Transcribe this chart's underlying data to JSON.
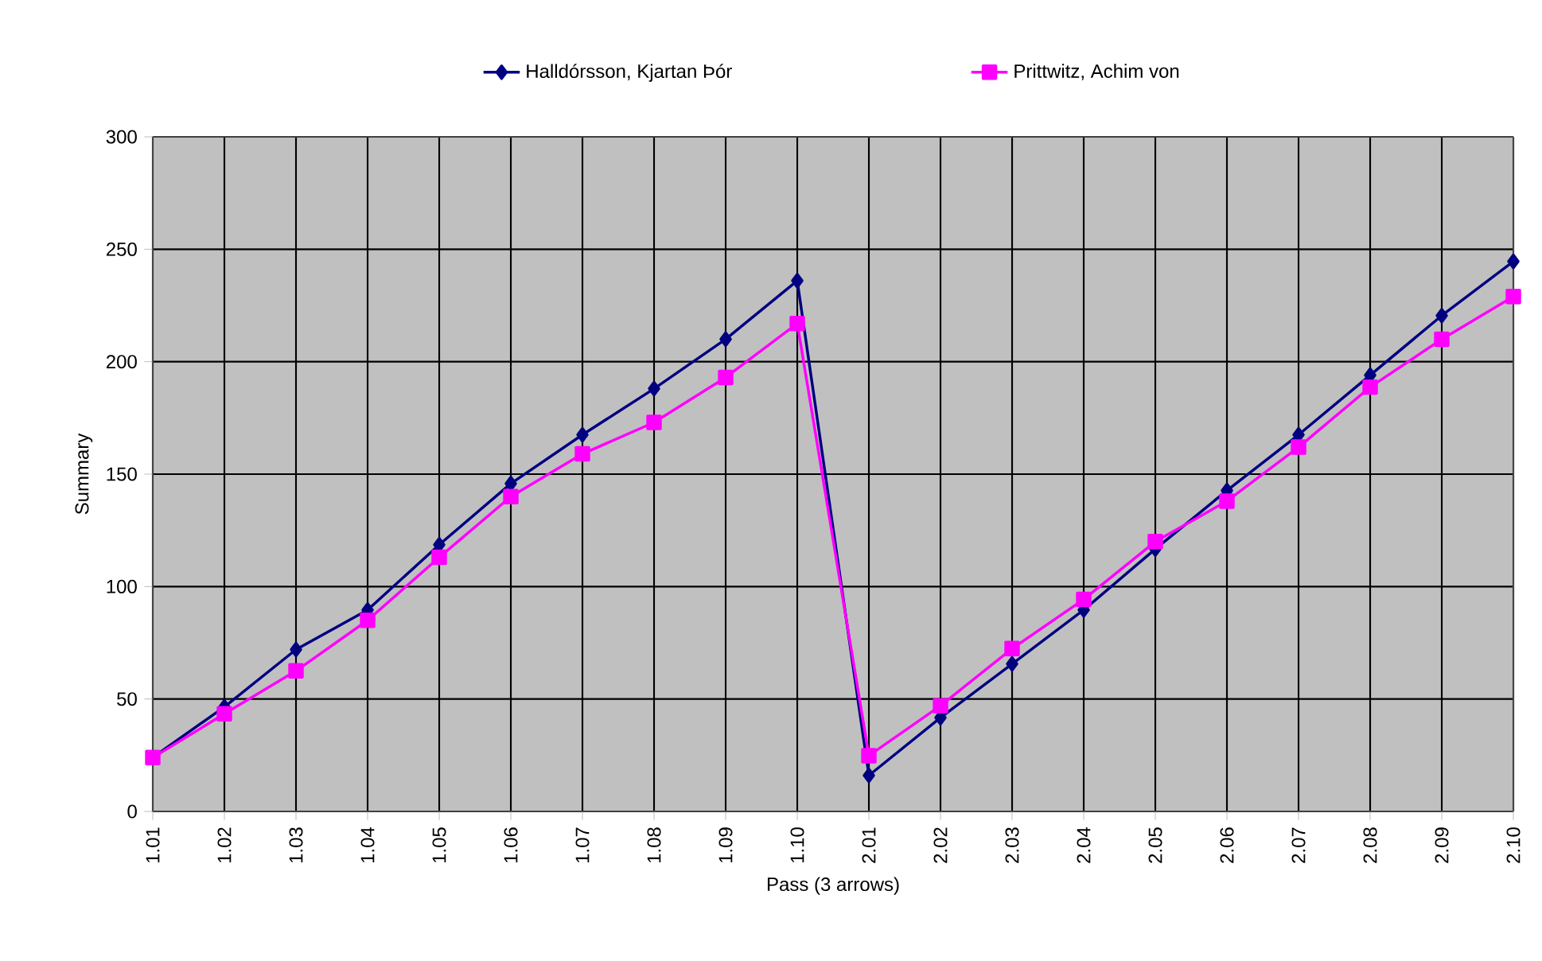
{
  "chart_data": {
    "type": "line",
    "xlabel": "Pass (3 arrows)",
    "ylabel": "Summary",
    "categories": [
      "1.01",
      "1.02",
      "1.03",
      "1.04",
      "1.05",
      "1.06",
      "1.07",
      "1.08",
      "1.09",
      "1.10",
      "2.01",
      "2.02",
      "2.03",
      "2.04",
      "2.05",
      "2.06",
      "2.07",
      "2.08",
      "2.09",
      "2.10"
    ],
    "series": [
      {
        "name": "Halldórsson, Kjartan Þór",
        "color": "#000080",
        "marker": "diamond",
        "values": [
          24,
          46.5,
          72,
          89.6,
          118.6,
          145.8,
          167.5,
          188,
          210,
          236,
          16,
          41.7,
          65.6,
          89.6,
          116.7,
          142.7,
          167.5,
          194,
          220.5,
          244.6
        ]
      },
      {
        "name": "Prittwitz, Achim von",
        "color": "#ff00ff",
        "marker": "square",
        "values": [
          24,
          43.4,
          62.5,
          85,
          113,
          140,
          159,
          173,
          193,
          217,
          24.8,
          47,
          72.4,
          94.3,
          120,
          138,
          162,
          188.7,
          210,
          229
        ]
      }
    ],
    "ylim": [
      0,
      300
    ],
    "yticks": [
      0,
      50,
      100,
      150,
      200,
      250,
      300
    ],
    "grid": true,
    "legend": "top"
  }
}
